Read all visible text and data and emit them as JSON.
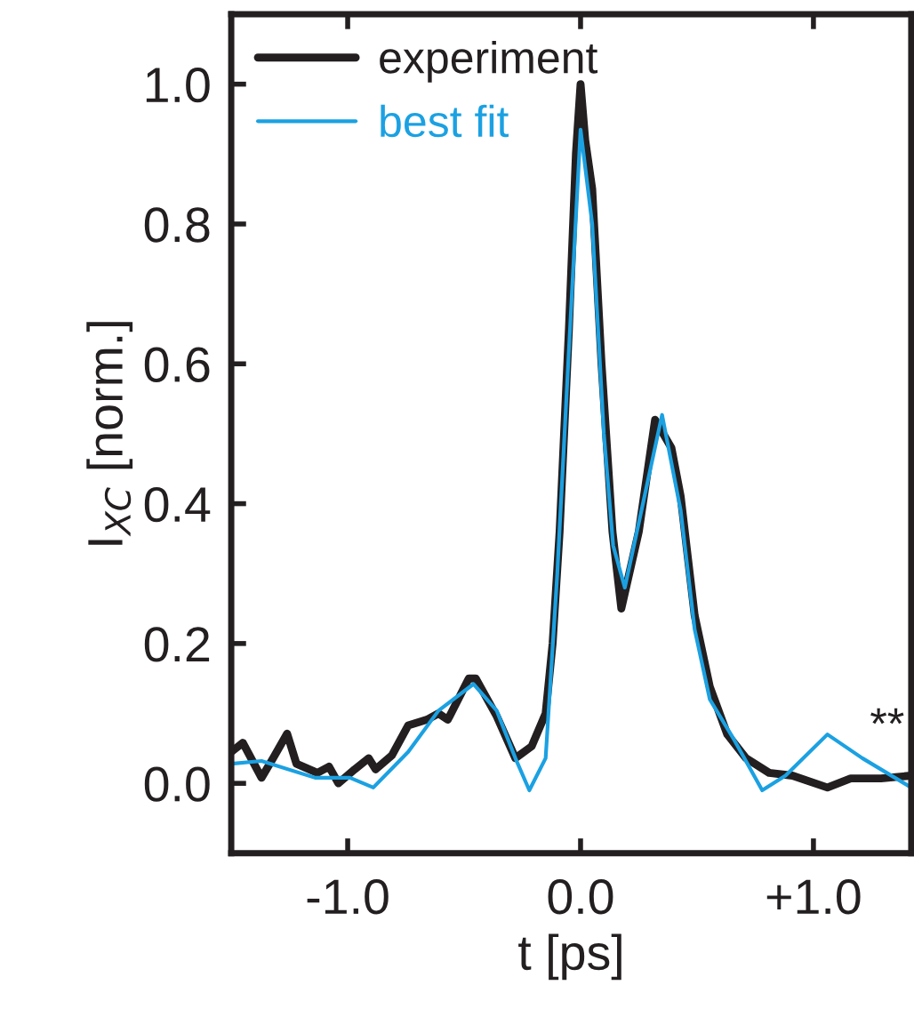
{
  "chart_data": {
    "type": "line",
    "xlabel": "t [ps]",
    "ylabel": "I$_{XC}$ [norm.]",
    "xlim": [
      -1.5,
      1.42
    ],
    "ylim": [
      -0.1,
      1.1
    ],
    "xticks": [
      {
        "value": -1.0,
        "label": "-1.0"
      },
      {
        "value": 0.0,
        "label": "0.0"
      },
      {
        "value": 1.0,
        "label": "+1.0"
      }
    ],
    "yticks": [
      {
        "value": 0.0,
        "label": "0.0"
      },
      {
        "value": 0.2,
        "label": "0.2"
      },
      {
        "value": 0.4,
        "label": "0.4"
      },
      {
        "value": 0.6,
        "label": "0.6"
      },
      {
        "value": 0.8,
        "label": "0.8"
      },
      {
        "value": 1.0,
        "label": "1.0"
      }
    ],
    "grid": false,
    "legend": "top left",
    "marker": "none",
    "line_style": "solid",
    "annotations": [
      "**"
    ],
    "series": [
      {
        "name": "experiment",
        "color": "#231f20",
        "x": [
          -1.5,
          -1.45,
          -1.37,
          -1.32,
          -1.26,
          -1.22,
          -1.13,
          -1.08,
          -1.04,
          -0.97,
          -0.91,
          -0.88,
          -0.81,
          -0.74,
          -0.66,
          -0.61,
          -0.57,
          -0.48,
          -0.45,
          -0.36,
          -0.28,
          -0.21,
          -0.15,
          -0.12,
          -0.09,
          -0.05,
          -0.02,
          0.0,
          0.02,
          0.05,
          0.09,
          0.137,
          0.175,
          0.25,
          0.32,
          0.39,
          0.43,
          0.49,
          0.555,
          0.63,
          0.71,
          0.81,
          0.91,
          1.06,
          1.16,
          1.29,
          1.42
        ],
        "values": [
          0.045,
          0.058,
          0.008,
          0.036,
          0.071,
          0.028,
          0.015,
          0.024,
          0.0,
          0.02,
          0.036,
          0.02,
          0.04,
          0.083,
          0.091,
          0.1,
          0.091,
          0.15,
          0.15,
          0.096,
          0.036,
          0.053,
          0.1,
          0.2,
          0.36,
          0.65,
          0.9,
          1.0,
          0.92,
          0.85,
          0.6,
          0.36,
          0.25,
          0.36,
          0.52,
          0.48,
          0.41,
          0.24,
          0.138,
          0.07,
          0.036,
          0.015,
          0.011,
          -0.006,
          0.007,
          0.007,
          0.011
        ]
      },
      {
        "name": "best fit",
        "color": "#1ba1e2",
        "x": [
          -1.5,
          -1.37,
          -1.14,
          -0.99,
          -0.89,
          -0.74,
          -0.61,
          -0.46,
          -0.36,
          -0.28,
          -0.22,
          -0.15,
          -0.1,
          -0.05,
          0.0,
          0.05,
          0.1,
          0.14,
          0.19,
          0.35,
          0.43,
          0.49,
          0.555,
          0.66,
          0.78,
          0.88,
          1.06,
          1.21,
          1.42
        ],
        "values": [
          0.028,
          0.032,
          0.008,
          0.008,
          -0.006,
          0.045,
          0.104,
          0.142,
          0.104,
          0.036,
          -0.01,
          0.036,
          0.3,
          0.62,
          0.935,
          0.8,
          0.5,
          0.34,
          0.28,
          0.527,
          0.39,
          0.22,
          0.12,
          0.062,
          -0.01,
          0.011,
          0.07,
          0.036,
          -0.006
        ]
      }
    ]
  }
}
